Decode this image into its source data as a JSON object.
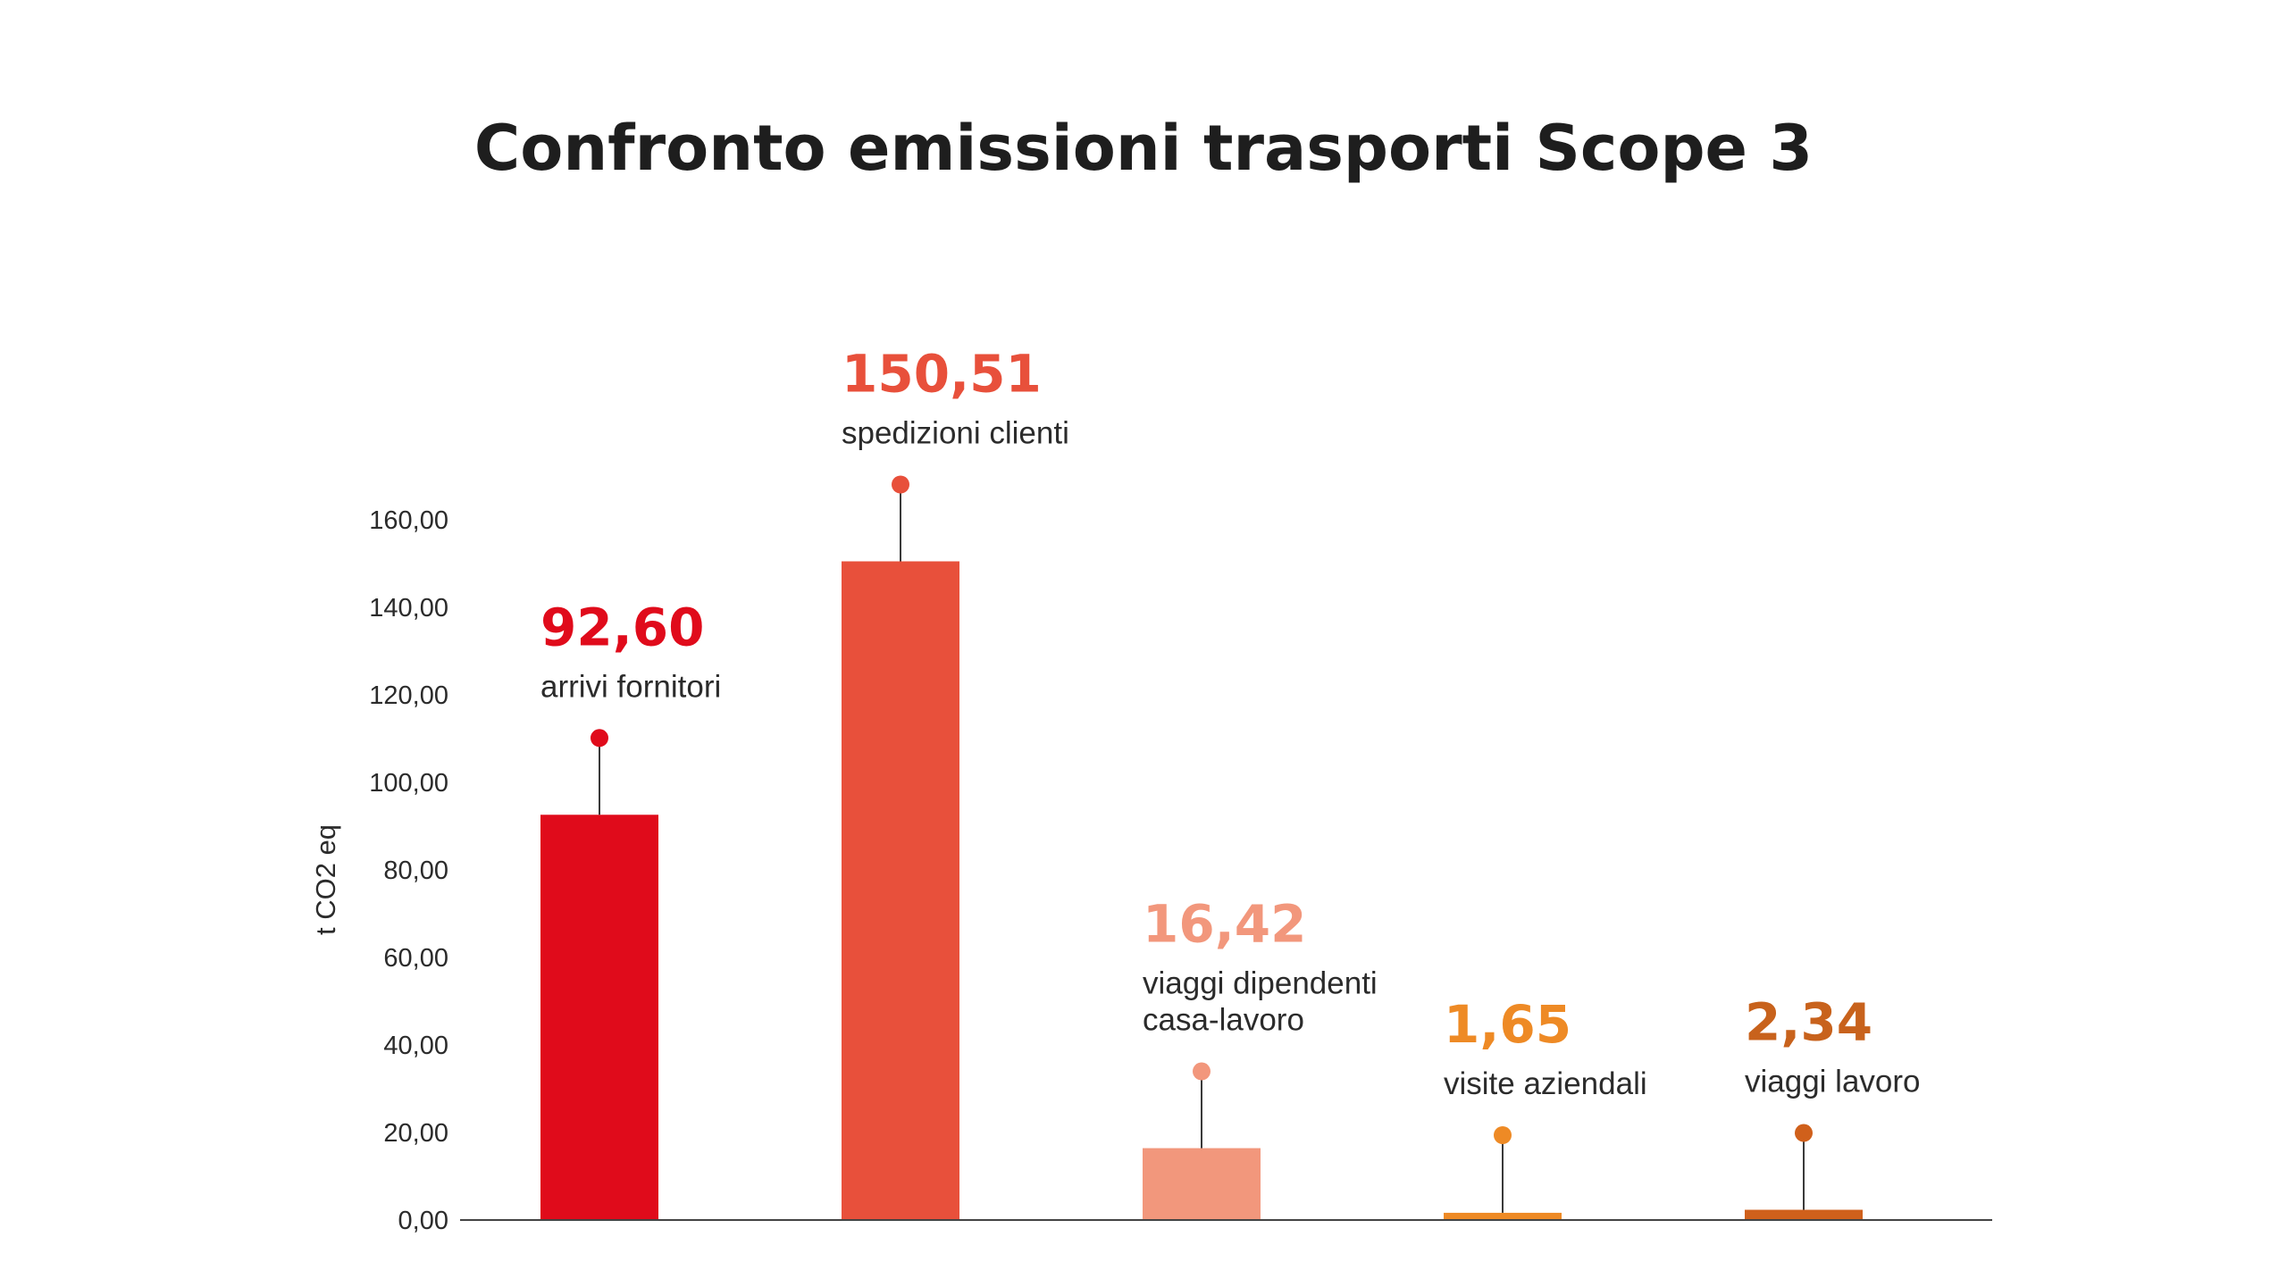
{
  "chart_data": {
    "type": "bar",
    "title": "Confronto emissioni trasporti  Scope 3",
    "ylabel": "t  CO2 eq",
    "ylim": [
      0,
      160
    ],
    "yticks": [
      "0,00",
      "20,00",
      "40,00",
      "60,00",
      "80,00",
      "100,00",
      "120,00",
      "140,00",
      "160,00"
    ],
    "grid": false,
    "legend": "none",
    "categories": [
      {
        "lines": [
          "arrivi fornitori"
        ]
      },
      {
        "lines": [
          "spedizioni clienti"
        ]
      },
      {
        "lines": [
          "viaggi dipendenti",
          "casa-lavoro"
        ]
      },
      {
        "lines": [
          "visite aziendali"
        ]
      },
      {
        "lines": [
          "viaggi lavoro"
        ]
      }
    ],
    "values": [
      92.6,
      150.51,
      16.42,
      1.65,
      2.34
    ],
    "value_labels": [
      "92,60",
      "150,51",
      "16,42",
      "1,65",
      "2,34"
    ],
    "colors": [
      "#e00b1b",
      "#e8503b",
      "#f2977c",
      "#ee8a25",
      "#d0601b"
    ],
    "value_label_colors": [
      "#e00b1b",
      "#e8503b",
      "#f2977c",
      "#ee8a25",
      "#c8621c"
    ]
  }
}
